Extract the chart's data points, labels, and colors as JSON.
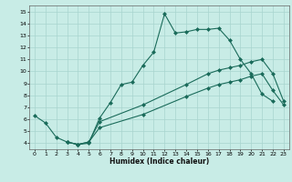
{
  "xlabel": "Humidex (Indice chaleur)",
  "background_color": "#c8ece6",
  "grid_color": "#a8d4ce",
  "line_color": "#1a6b5a",
  "xlim": [
    -0.5,
    23.5
  ],
  "ylim": [
    3.5,
    15.5
  ],
  "xticks": [
    0,
    1,
    2,
    3,
    4,
    5,
    6,
    7,
    8,
    9,
    10,
    11,
    12,
    13,
    14,
    15,
    16,
    17,
    18,
    19,
    20,
    21,
    22,
    23
  ],
  "yticks": [
    4,
    5,
    6,
    7,
    8,
    9,
    10,
    11,
    12,
    13,
    14,
    15
  ],
  "curve1_x": [
    0,
    1,
    2,
    3,
    4,
    5,
    6,
    7,
    8,
    9,
    10,
    11,
    12,
    13,
    14,
    15,
    16,
    17,
    18,
    19,
    20,
    21,
    22
  ],
  "curve1_y": [
    6.3,
    5.7,
    4.5,
    4.1,
    3.9,
    4.0,
    6.1,
    7.4,
    8.9,
    9.1,
    10.5,
    11.6,
    14.8,
    13.2,
    13.3,
    13.5,
    13.5,
    13.6,
    12.6,
    11.0,
    9.8,
    8.1,
    7.5
  ],
  "line2_x": [
    3,
    4,
    5,
    6,
    10,
    14,
    16,
    17,
    18,
    19,
    20,
    21,
    22,
    23
  ],
  "line2_y": [
    4.1,
    3.9,
    4.1,
    5.8,
    7.2,
    8.9,
    9.8,
    10.1,
    10.3,
    10.5,
    10.8,
    11.0,
    9.8,
    7.5
  ],
  "line3_x": [
    3,
    4,
    5,
    6,
    10,
    14,
    16,
    17,
    18,
    19,
    20,
    21,
    22,
    23
  ],
  "line3_y": [
    4.1,
    3.9,
    4.1,
    5.3,
    6.4,
    7.9,
    8.6,
    8.9,
    9.1,
    9.3,
    9.6,
    9.8,
    8.4,
    7.2
  ]
}
